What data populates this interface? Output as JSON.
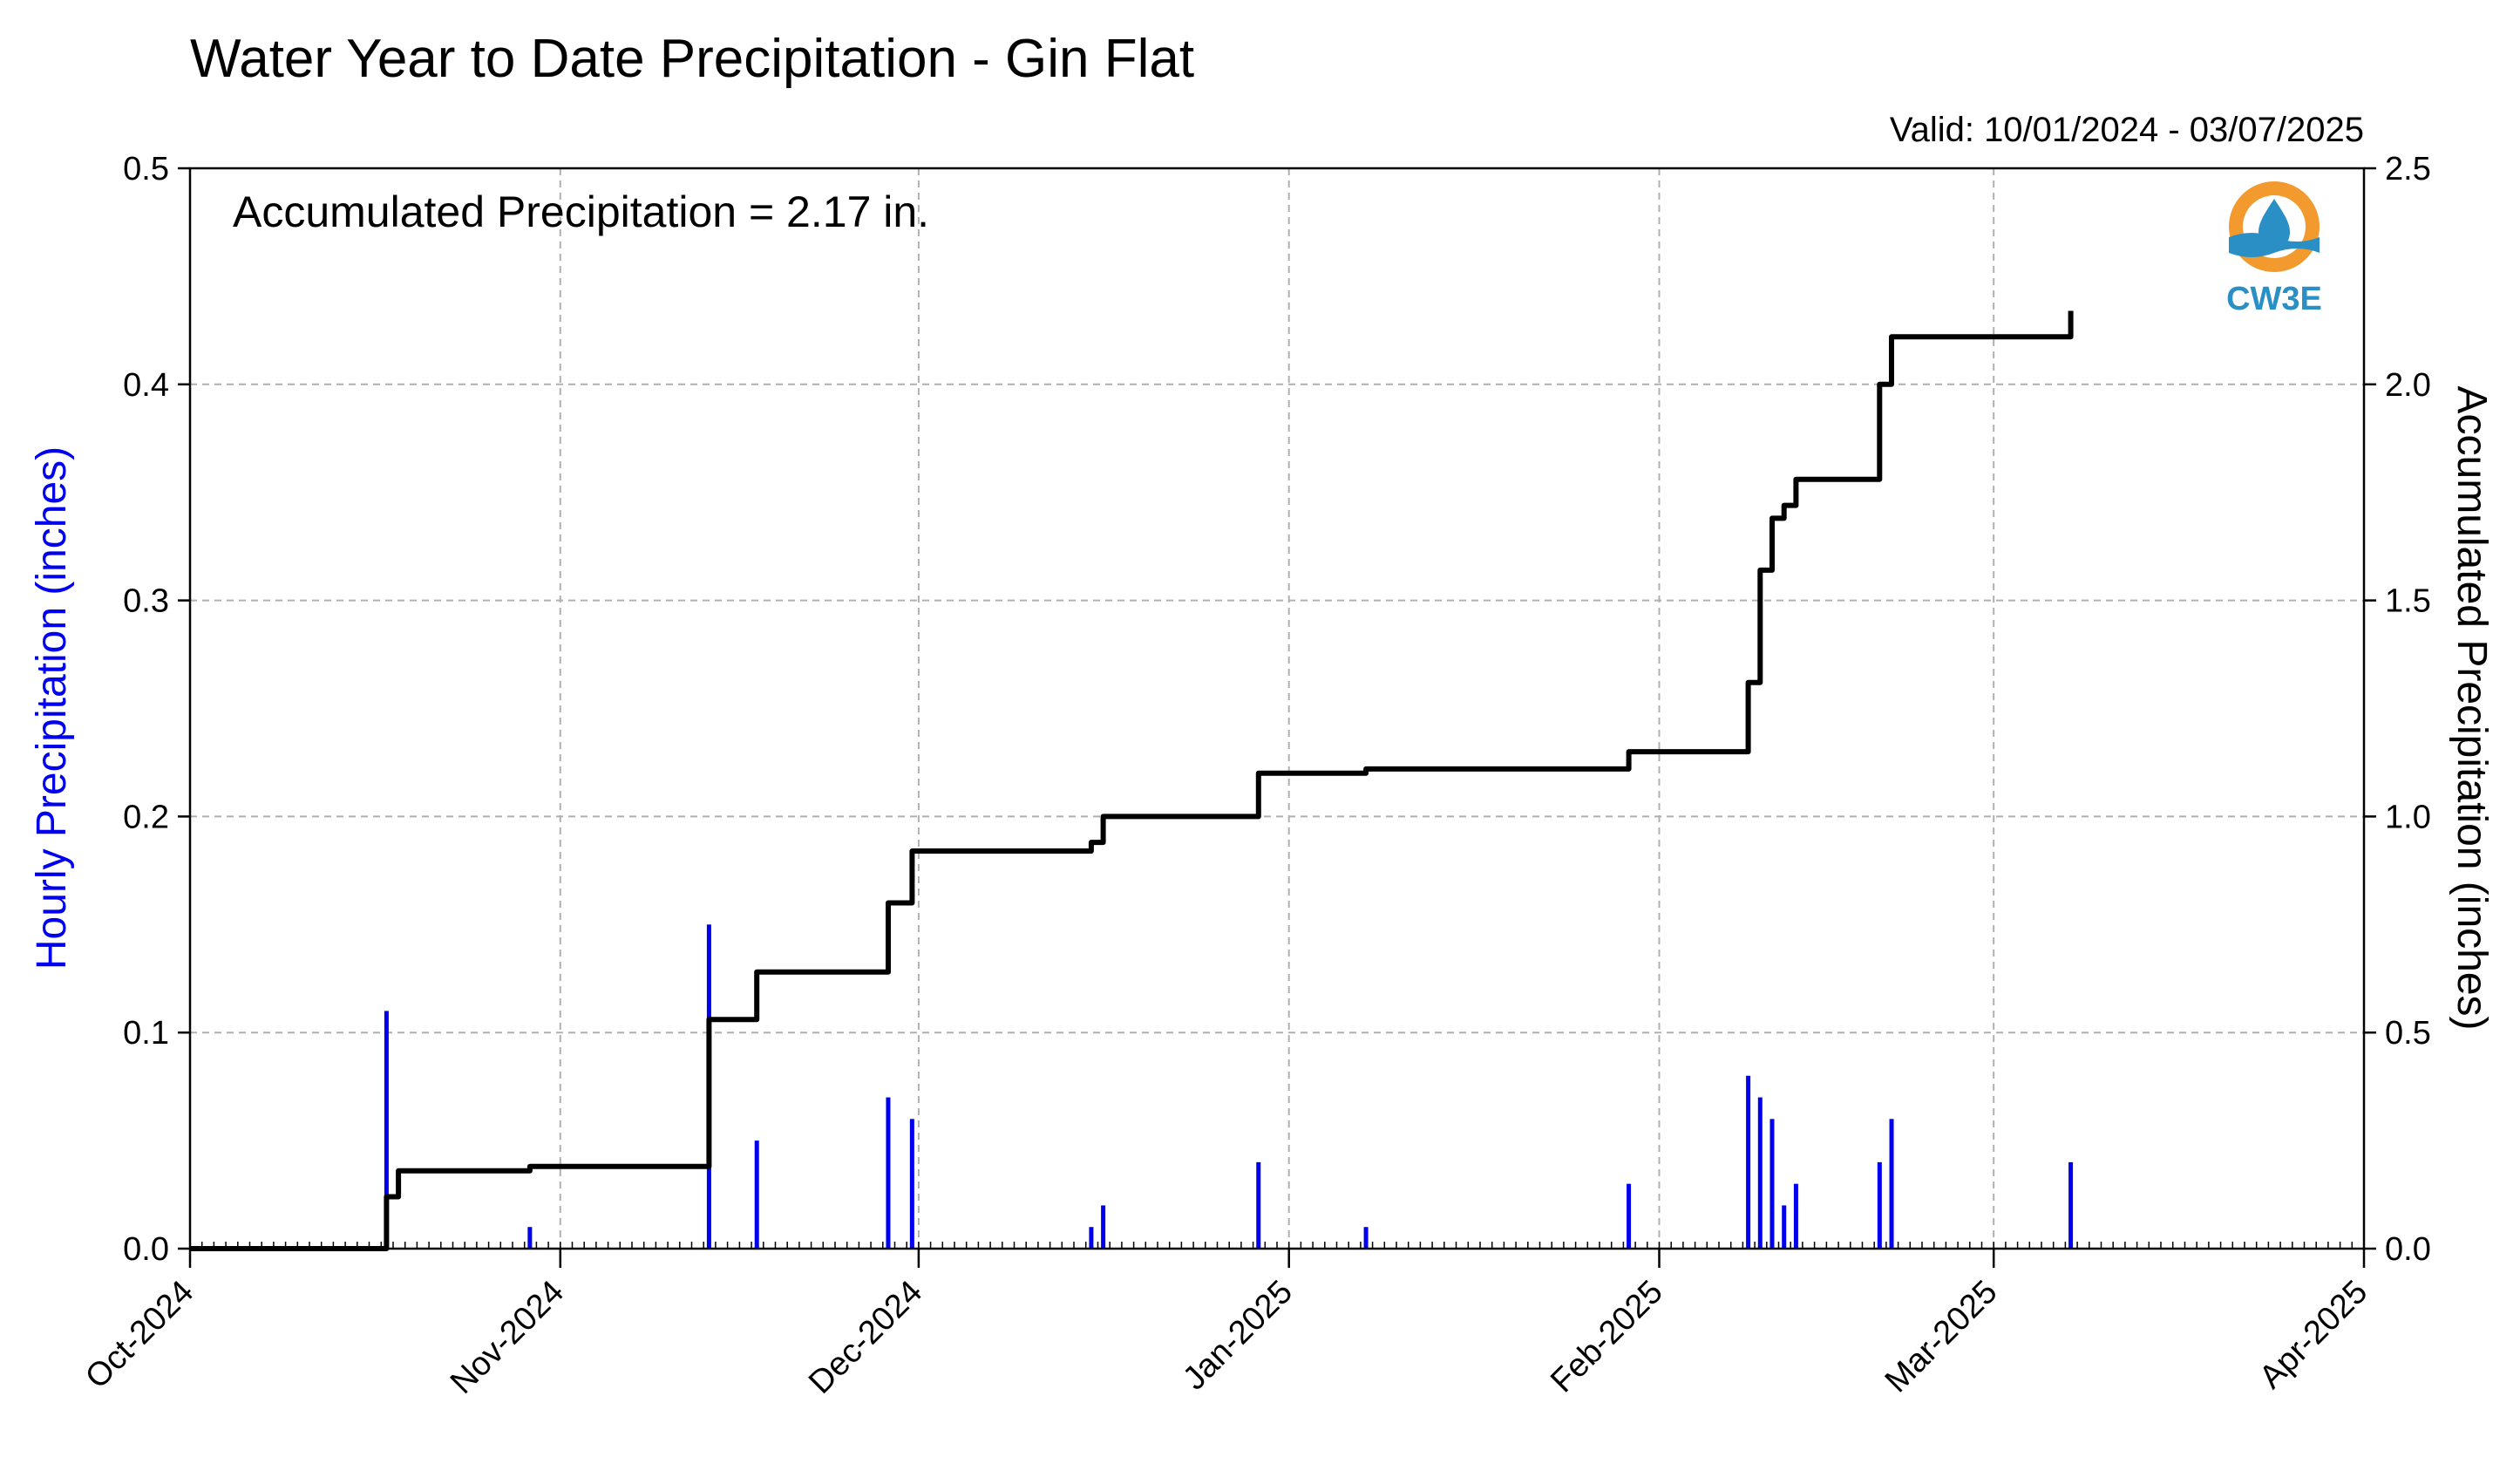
{
  "chart_data": {
    "type": "bar+line",
    "title": "Water Year to Date Precipitation - Gin Flat",
    "valid_text": "Valid: 10/01/2024 - 03/07/2025",
    "annotation": "Accumulated Precipitation = 2.17 in.",
    "ylabel_left": "Hourly Precipitation (inches)",
    "ylabel_right": "Accumulated Precipitation (inches)",
    "ylim_left": [
      0,
      0.5
    ],
    "ylim_right": [
      0,
      2.5
    ],
    "y_ticks_left": [
      "0.0",
      "0.1",
      "0.2",
      "0.3",
      "0.4",
      "0.5"
    ],
    "y_ticks_right": [
      "0.0",
      "0.5",
      "1.0",
      "1.5",
      "2.0",
      "2.5"
    ],
    "x_ticks": [
      "Oct-2024",
      "Nov-2024",
      "Dec-2024",
      "Jan-2025",
      "Feb-2025",
      "Mar-2025",
      "Apr-2025"
    ],
    "x_tick_dates": [
      "2024-10-01",
      "2024-11-01",
      "2024-12-01",
      "2025-01-01",
      "2025-02-01",
      "2025-03-01",
      "2025-04-01"
    ],
    "xlim": [
      "2024-10-01",
      "2025-04-01"
    ],
    "grid": true,
    "hourly_color": "#0000ee",
    "accum_color": "#000000",
    "series": [
      {
        "name": "Hourly Precipitation",
        "kind": "bar",
        "x": [
          "2024-10-17",
          "2024-10-29",
          "2024-11-13",
          "2024-11-17",
          "2024-11-28",
          "2024-11-30",
          "2024-12-15",
          "2024-12-16",
          "2024-12-29",
          "2025-01-07",
          "2025-01-29",
          "2025-02-08",
          "2025-02-09",
          "2025-02-10",
          "2025-02-11",
          "2025-02-12",
          "2025-02-19",
          "2025-02-20",
          "2025-03-07"
        ],
        "values": [
          0.11,
          0.01,
          0.15,
          0.05,
          0.07,
          0.06,
          0.01,
          0.02,
          0.04,
          0.01,
          0.03,
          0.08,
          0.07,
          0.06,
          0.02,
          0.03,
          0.04,
          0.06,
          0.04
        ]
      },
      {
        "name": "Accumulated Precipitation",
        "kind": "step",
        "x": [
          "2024-10-01",
          "2024-10-17",
          "2024-10-18",
          "2024-10-29",
          "2024-11-13",
          "2024-11-17",
          "2024-11-28",
          "2024-11-30",
          "2024-12-15",
          "2024-12-16",
          "2024-12-29",
          "2025-01-07",
          "2025-01-29",
          "2025-02-08",
          "2025-02-09",
          "2025-02-10",
          "2025-02-11",
          "2025-02-12",
          "2025-02-19",
          "2025-02-20",
          "2025-03-06",
          "2025-03-07"
        ],
        "values": [
          0.0,
          0.12,
          0.18,
          0.19,
          0.53,
          0.64,
          0.8,
          0.92,
          0.94,
          1.0,
          1.1,
          1.11,
          1.15,
          1.31,
          1.57,
          1.69,
          1.72,
          1.78,
          2.0,
          2.11,
          2.11,
          2.17
        ]
      }
    ]
  },
  "logo": {
    "text": "CW3E",
    "colors": [
      "#f29a2e",
      "#2a8fc4"
    ]
  }
}
